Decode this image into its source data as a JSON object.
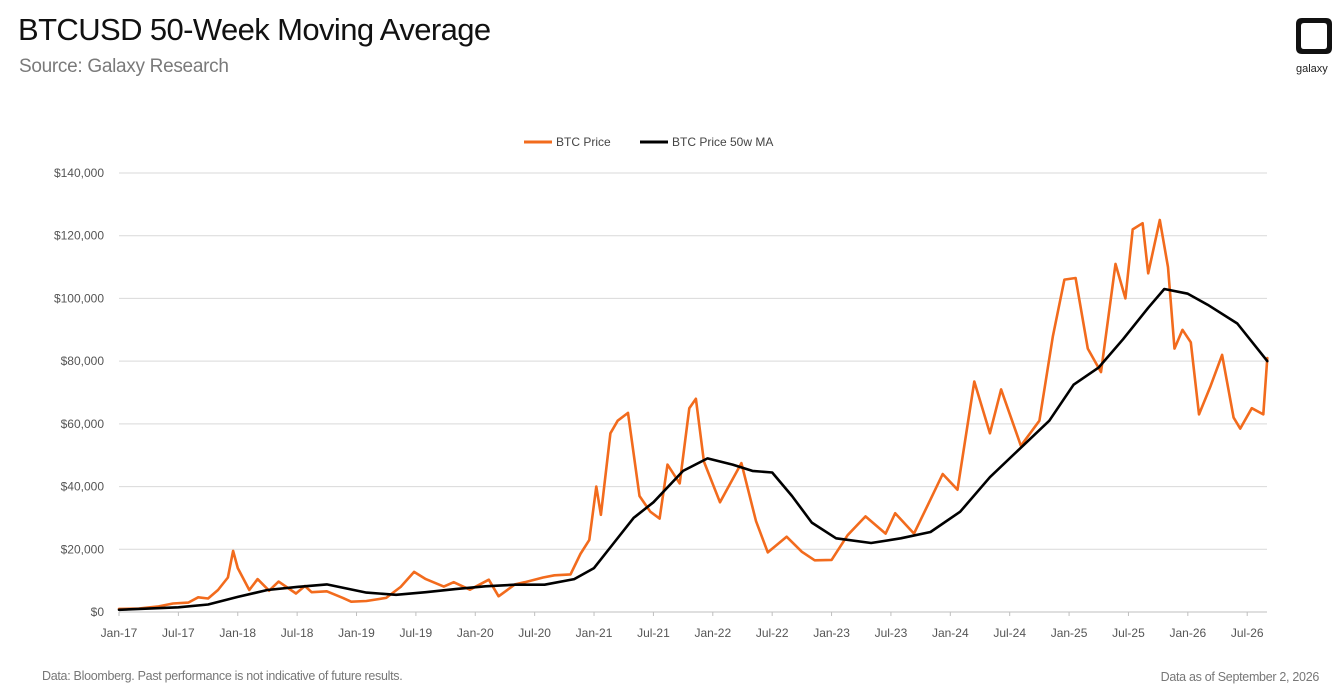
{
  "header": {
    "title": "BTCUSD 50-Week Moving Average",
    "subtitle": "Source: Galaxy Research",
    "logo_text": "galaxy"
  },
  "footer": {
    "disclaimer": "Data: Bloomberg. Past performance is not indicative of future results.",
    "as_of": "Data as of September 2, 2026"
  },
  "colors": {
    "price": "#f26b1d",
    "ma": "#000000",
    "grid": "#d9d9d9",
    "axis": "#bfbfbf"
  },
  "chart_data": {
    "type": "line",
    "title": "BTCUSD 50-Week Moving Average",
    "xlabel": "",
    "ylabel": "",
    "xlim": [
      "2017-01",
      "2026-09"
    ],
    "ylim": [
      0,
      140000
    ],
    "grid": true,
    "legend_position": "top-center",
    "y_ticks": [
      "$0",
      "$20,000",
      "$40,000",
      "$60,000",
      "$80,000",
      "$100,000",
      "$120,000",
      "$140,000"
    ],
    "x_ticks": [
      "Jan-17",
      "Jul-17",
      "Jan-18",
      "Jul-18",
      "Jan-19",
      "Jul-19",
      "Jan-20",
      "Jul-20",
      "Jan-21",
      "Jul-21",
      "Jan-22",
      "Jul-22",
      "Jan-23",
      "Jul-23",
      "Jan-24",
      "Jul-24",
      "Jan-25",
      "Jul-25",
      "Jan-26",
      "Jul-26"
    ],
    "series": [
      {
        "name": "BTC Price",
        "color": "#f26b1d",
        "points": [
          [
            "2017-01-01",
            1000
          ],
          [
            "2017-03-01",
            1100
          ],
          [
            "2017-05-01",
            1800
          ],
          [
            "2017-06-15",
            2700
          ],
          [
            "2017-08-01",
            3000
          ],
          [
            "2017-09-01",
            4700
          ],
          [
            "2017-10-01",
            4300
          ],
          [
            "2017-11-01",
            7000
          ],
          [
            "2017-12-01",
            11000
          ],
          [
            "2017-12-17",
            19500
          ],
          [
            "2018-01-01",
            14000
          ],
          [
            "2018-02-06",
            7000
          ],
          [
            "2018-03-01",
            10500
          ],
          [
            "2018-04-06",
            6800
          ],
          [
            "2018-05-05",
            9700
          ],
          [
            "2018-06-28",
            5900
          ],
          [
            "2018-07-25",
            8300
          ],
          [
            "2018-08-15",
            6300
          ],
          [
            "2018-10-01",
            6600
          ],
          [
            "2018-11-20",
            4500
          ],
          [
            "2018-12-15",
            3300
          ],
          [
            "2019-02-01",
            3500
          ],
          [
            "2019-04-01",
            4500
          ],
          [
            "2019-05-15",
            8000
          ],
          [
            "2019-06-26",
            12800
          ],
          [
            "2019-08-01",
            10500
          ],
          [
            "2019-09-26",
            8100
          ],
          [
            "2019-10-26",
            9500
          ],
          [
            "2019-12-15",
            7100
          ],
          [
            "2020-02-12",
            10300
          ],
          [
            "2020-03-12",
            5000
          ],
          [
            "2020-05-01",
            8800
          ],
          [
            "2020-06-01",
            9500
          ],
          [
            "2020-07-27",
            11000
          ],
          [
            "2020-09-01",
            11700
          ],
          [
            "2020-10-20",
            12000
          ],
          [
            "2020-11-20",
            18500
          ],
          [
            "2020-12-17",
            23000
          ],
          [
            "2021-01-08",
            40000
          ],
          [
            "2021-01-22",
            31000
          ],
          [
            "2021-02-21",
            57000
          ],
          [
            "2021-03-13",
            61000
          ],
          [
            "2021-04-14",
            63500
          ],
          [
            "2021-05-19",
            37000
          ],
          [
            "2021-06-22",
            32000
          ],
          [
            "2021-07-20",
            29800
          ],
          [
            "2021-08-14",
            47000
          ],
          [
            "2021-09-21",
            41000
          ],
          [
            "2021-10-20",
            65000
          ],
          [
            "2021-11-10",
            68000
          ],
          [
            "2021-12-04",
            48000
          ],
          [
            "2022-01-23",
            35000
          ],
          [
            "2022-03-28",
            47500
          ],
          [
            "2022-05-12",
            29000
          ],
          [
            "2022-06-18",
            19000
          ],
          [
            "2022-08-15",
            24000
          ],
          [
            "2022-10-01",
            19200
          ],
          [
            "2022-11-10",
            16500
          ],
          [
            "2023-01-01",
            16600
          ],
          [
            "2023-02-20",
            24500
          ],
          [
            "2023-04-14",
            30500
          ],
          [
            "2023-06-15",
            25000
          ],
          [
            "2023-07-14",
            31500
          ],
          [
            "2023-09-11",
            25000
          ],
          [
            "2023-10-25",
            34500
          ],
          [
            "2023-12-08",
            44000
          ],
          [
            "2024-01-23",
            39000
          ],
          [
            "2024-03-14",
            73500
          ],
          [
            "2024-05-01",
            57000
          ],
          [
            "2024-06-05",
            71000
          ],
          [
            "2024-08-05",
            53000
          ],
          [
            "2024-10-01",
            61000
          ],
          [
            "2024-11-12",
            88000
          ],
          [
            "2024-12-17",
            106000
          ],
          [
            "2025-01-21",
            106500
          ],
          [
            "2025-02-28",
            84000
          ],
          [
            "2025-04-08",
            76500
          ],
          [
            "2025-05-22",
            111000
          ],
          [
            "2025-06-22",
            100000
          ],
          [
            "2025-07-14",
            122000
          ],
          [
            "2025-08-14",
            124000
          ],
          [
            "2025-09-01",
            108000
          ],
          [
            "2025-10-06",
            125000
          ],
          [
            "2025-11-01",
            110000
          ],
          [
            "2025-11-21",
            84000
          ],
          [
            "2025-12-15",
            90000
          ],
          [
            "2026-01-10",
            86000
          ],
          [
            "2026-02-05",
            63000
          ],
          [
            "2026-03-10",
            72000
          ],
          [
            "2026-04-15",
            82000
          ],
          [
            "2026-05-20",
            62000
          ],
          [
            "2026-06-10",
            58500
          ],
          [
            "2026-07-15",
            65000
          ],
          [
            "2026-08-20",
            63000
          ],
          [
            "2026-09-02",
            81000
          ]
        ]
      },
      {
        "name": "BTC Price 50w MA",
        "color": "#000000",
        "points": [
          [
            "2017-01-01",
            700
          ],
          [
            "2017-07-01",
            1500
          ],
          [
            "2017-10-01",
            2400
          ],
          [
            "2018-01-01",
            4800
          ],
          [
            "2018-04-01",
            7000
          ],
          [
            "2018-07-01",
            8000
          ],
          [
            "2018-10-01",
            8800
          ],
          [
            "2018-12-01",
            7500
          ],
          [
            "2019-02-01",
            6200
          ],
          [
            "2019-05-01",
            5500
          ],
          [
            "2019-08-01",
            6300
          ],
          [
            "2019-11-01",
            7300
          ],
          [
            "2020-02-01",
            8200
          ],
          [
            "2020-05-01",
            8700
          ],
          [
            "2020-08-01",
            8700
          ],
          [
            "2020-11-01",
            10500
          ],
          [
            "2021-01-01",
            14000
          ],
          [
            "2021-03-01",
            22000
          ],
          [
            "2021-05-01",
            30000
          ],
          [
            "2021-07-01",
            35000
          ],
          [
            "2021-10-01",
            45000
          ],
          [
            "2021-12-15",
            49000
          ],
          [
            "2022-03-01",
            47000
          ],
          [
            "2022-05-01",
            45000
          ],
          [
            "2022-07-01",
            44500
          ],
          [
            "2022-09-01",
            37000
          ],
          [
            "2022-11-01",
            28500
          ],
          [
            "2023-01-15",
            23500
          ],
          [
            "2023-05-01",
            22000
          ],
          [
            "2023-08-01",
            23500
          ],
          [
            "2023-11-01",
            25500
          ],
          [
            "2024-02-01",
            32000
          ],
          [
            "2024-05-01",
            43000
          ],
          [
            "2024-08-01",
            52000
          ],
          [
            "2024-11-01",
            61000
          ],
          [
            "2025-01-15",
            72500
          ],
          [
            "2025-04-01",
            78000
          ],
          [
            "2025-06-15",
            87000
          ],
          [
            "2025-09-01",
            97000
          ],
          [
            "2025-10-20",
            103000
          ],
          [
            "2026-01-01",
            101500
          ],
          [
            "2026-03-01",
            98000
          ],
          [
            "2026-06-01",
            92000
          ],
          [
            "2026-09-02",
            80000
          ]
        ]
      }
    ]
  }
}
